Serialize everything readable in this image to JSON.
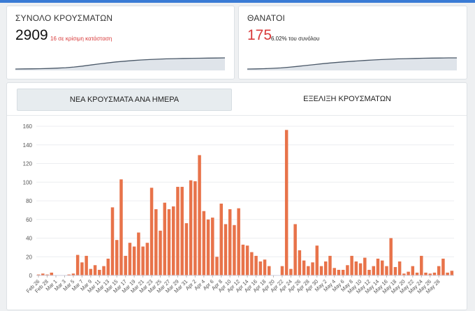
{
  "cards": {
    "cases": {
      "title": "ΣΥΝΟΛΟ ΚΡΟΥΣΜΑΤΩΝ",
      "value": "2909",
      "note": "16 σε κρίσιμη κατάσταση",
      "note_color": "#d83a3a"
    },
    "deaths": {
      "title": "ΘΑΝΑΤΟΙ",
      "value": "175",
      "note": "6.02% του συνόλου",
      "value_color": "#d83a3a"
    }
  },
  "tabs": {
    "daily": "ΝΕΑ ΚΡΟΥΣΜΑΤΑ ΑΝΑ ΗΜΕΡΑ",
    "evolution": "ΕΞΕΛΙΞΗ ΚΡΟΥΣΜΑΤΩΝ"
  },
  "colors": {
    "bar": "#e8734a",
    "accent": "#3a7bd5",
    "sparkline": "#4a5868"
  },
  "chart_data": {
    "type": "bar",
    "ylim": [
      0,
      160
    ],
    "yticks": [
      0,
      20,
      40,
      60,
      80,
      100,
      120,
      140,
      160
    ],
    "grid": true,
    "x_tick_labels": [
      "Feb 26",
      "Feb 28",
      "Mar 1",
      "Mar 3",
      "Mar 5",
      "Mar 7",
      "Mar 9",
      "Mar 11",
      "Mar 13",
      "Mar 15",
      "Mar 17",
      "Mar 19",
      "Mar 21",
      "Mar 23",
      "Mar 25",
      "Mar 27",
      "Mar 29",
      "Mar 31",
      "Apr 2",
      "Apr 4",
      "Apr 6",
      "Apr 8",
      "Apr 10",
      "Apr 12",
      "Apr 14",
      "Apr 16",
      "Apr 18",
      "Apr 20",
      "Apr 22",
      "Apr 24",
      "Apr 26",
      "Apr 28",
      "Apr 30",
      "May 2",
      "May 4",
      "May 6",
      "May 8",
      "May 10",
      "May 12",
      "May 14",
      "May 16",
      "May 18",
      "May 20",
      "May 22",
      "May 24",
      "May 26",
      "May 28"
    ],
    "values": [
      1,
      2,
      1,
      3,
      0,
      0,
      0,
      1,
      2,
      22,
      14,
      21,
      7,
      11,
      6,
      10,
      18,
      73,
      38,
      103,
      21,
      35,
      31,
      46,
      31,
      35,
      94,
      71,
      48,
      78,
      71,
      74,
      95,
      95,
      56,
      102,
      101,
      129,
      69,
      60,
      62,
      20,
      77,
      55,
      71,
      54,
      72,
      33,
      32,
      25,
      21,
      15,
      17,
      10,
      0,
      0,
      10,
      156,
      7,
      55,
      27,
      16,
      10,
      14,
      32,
      10,
      15,
      21,
      8,
      6,
      6,
      11,
      21,
      15,
      13,
      19,
      6,
      10,
      18,
      16,
      10,
      40,
      9,
      15,
      2,
      4,
      10,
      3,
      21,
      3,
      2,
      3,
      10,
      18,
      3,
      5
    ]
  },
  "sparklines": {
    "cases": [
      0.0,
      0.01,
      0.02,
      0.03,
      0.05,
      0.08,
      0.12,
      0.18,
      0.26,
      0.36,
      0.46,
      0.55,
      0.64,
      0.7,
      0.76,
      0.81,
      0.85,
      0.88,
      0.91,
      0.93,
      0.95,
      0.96,
      0.97,
      0.98,
      0.99,
      1.0
    ],
    "deaths": [
      0.0,
      0.01,
      0.03,
      0.06,
      0.1,
      0.16,
      0.24,
      0.32,
      0.4,
      0.48,
      0.55,
      0.61,
      0.67,
      0.72,
      0.77,
      0.81,
      0.85,
      0.88,
      0.91,
      0.93,
      0.95,
      0.97,
      0.98,
      0.99,
      1.0,
      1.0
    ]
  }
}
